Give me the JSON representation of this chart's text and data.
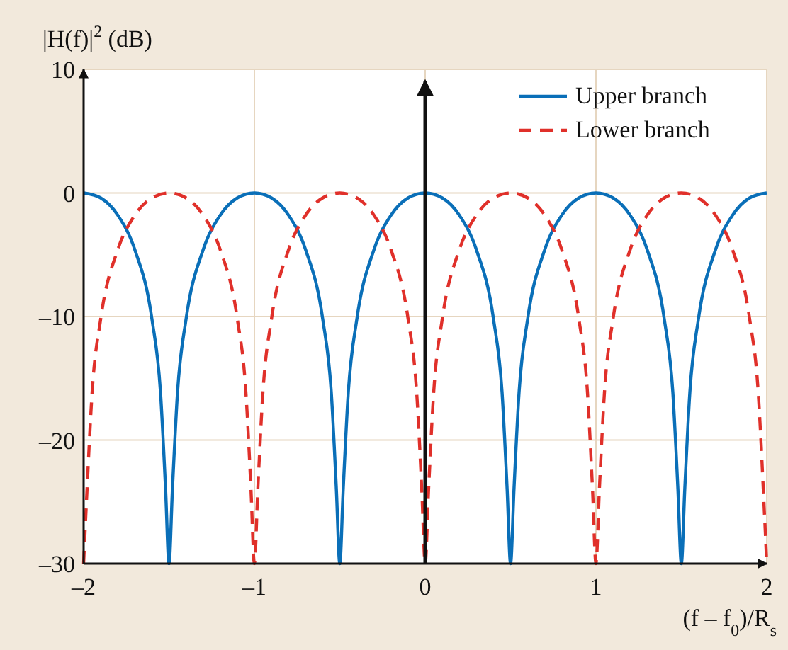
{
  "chart_data": {
    "type": "line",
    "ylabel": "|H(f)|$^{2}$ (dB)",
    "xlabel": "(f – f$_{0}$)/R$_{s}$",
    "xlim": [
      -2,
      2
    ],
    "xticks": [
      {
        "value": -2,
        "label": "–2"
      },
      {
        "value": -1,
        "label": "–1"
      },
      0,
      1,
      2
    ],
    "ylim": [
      -30,
      10
    ],
    "yticks": [
      {
        "value": -30,
        "label": "–30"
      },
      {
        "value": -20,
        "label": "–20"
      },
      {
        "value": -10,
        "label": "–10"
      },
      0,
      10
    ],
    "grid": true,
    "legend": "top right",
    "ref_lines": [
      {
        "axis": "x",
        "value": 0,
        "color": "#111111"
      }
    ],
    "series": [
      {
        "name": "Upper branch",
        "color": "#0a6fb8",
        "line_style": "solid",
        "x": [
          -2,
          -1.9,
          -1.8,
          -1.7,
          -1.6,
          -1.55,
          -1.52,
          -1.5,
          -1.48,
          -1.45,
          -1.4,
          -1.3,
          -1.2,
          -1.1,
          -1,
          -0.9,
          -0.8,
          -0.7,
          -0.6,
          -0.55,
          -0.52,
          -0.5,
          -0.48,
          -0.45,
          -0.4,
          -0.3,
          -0.2,
          -0.1,
          0,
          0.1,
          0.2,
          0.3,
          0.4,
          0.45,
          0.48,
          0.5,
          0.52,
          0.55,
          0.6,
          0.7,
          0.8,
          0.9,
          1,
          1.1,
          1.2,
          1.3,
          1.4,
          1.45,
          1.48,
          1.5,
          1.52,
          1.55,
          1.6,
          1.7,
          1.8,
          1.9,
          2
        ],
        "values": [
          0,
          -0.4,
          -1.8,
          -4.6,
          -10.2,
          -16.1,
          -24,
          -30,
          -24,
          -16.1,
          -10.2,
          -4.6,
          -1.8,
          -0.4,
          0,
          -0.4,
          -1.8,
          -4.6,
          -10.2,
          -16.1,
          -24,
          -30,
          -24,
          -16.1,
          -10.2,
          -4.6,
          -1.8,
          -0.4,
          0,
          -0.4,
          -1.8,
          -4.6,
          -10.2,
          -16.1,
          -24,
          -30,
          -24,
          -16.1,
          -10.2,
          -4.6,
          -1.8,
          -0.4,
          0,
          -0.4,
          -1.8,
          -4.6,
          -10.2,
          -16.1,
          -24,
          -30,
          -24,
          -16.1,
          -10.2,
          -4.6,
          -1.8,
          -0.4,
          0
        ]
      },
      {
        "name": "Lower branch",
        "color": "#e0302a",
        "line_style": "dashed",
        "x": [
          -2,
          -1.98,
          -1.95,
          -1.9,
          -1.8,
          -1.7,
          -1.6,
          -1.5,
          -1.4,
          -1.3,
          -1.2,
          -1.1,
          -1.05,
          -1.02,
          -1,
          -0.98,
          -0.95,
          -0.9,
          -0.8,
          -0.7,
          -0.6,
          -0.5,
          -0.4,
          -0.3,
          -0.2,
          -0.1,
          -0.05,
          -0.02,
          0,
          0.02,
          0.05,
          0.1,
          0.2,
          0.3,
          0.4,
          0.5,
          0.6,
          0.7,
          0.8,
          0.9,
          0.95,
          0.98,
          1,
          1.02,
          1.05,
          1.1,
          1.2,
          1.3,
          1.4,
          1.5,
          1.6,
          1.7,
          1.8,
          1.9,
          1.95,
          1.98,
          2
        ],
        "values": [
          -30,
          -24,
          -16.1,
          -10.2,
          -4.6,
          -1.8,
          -0.4,
          0,
          -0.4,
          -1.8,
          -4.6,
          -10.2,
          -16.1,
          -24,
          -30,
          -24,
          -16.1,
          -10.2,
          -4.6,
          -1.8,
          -0.4,
          0,
          -0.4,
          -1.8,
          -4.6,
          -10.2,
          -16.1,
          -24,
          -30,
          -24,
          -16.1,
          -10.2,
          -4.6,
          -1.8,
          -0.4,
          0,
          -0.4,
          -1.8,
          -4.6,
          -10.2,
          -16.1,
          -24,
          -30,
          -24,
          -16.1,
          -10.2,
          -4.6,
          -1.8,
          -0.4,
          0,
          -0.4,
          -1.8,
          -4.6,
          -10.2,
          -16.1,
          -24,
          -30
        ]
      }
    ]
  }
}
